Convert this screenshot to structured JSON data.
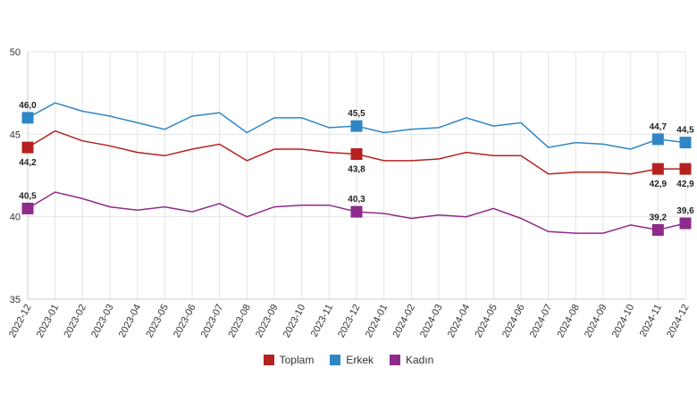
{
  "chart_data": {
    "type": "line",
    "x": [
      "2022-12",
      "2023-01",
      "2023-02",
      "2023-03",
      "2023-04",
      "2023-05",
      "2023-06",
      "2023-07",
      "2023-08",
      "2023-09",
      "2023-10",
      "2023-11",
      "2023-12",
      "2024-01",
      "2024-02",
      "2024-03",
      "2024-04",
      "2024-05",
      "2024-06",
      "2024-07",
      "2024-08",
      "2024-09",
      "2024-10",
      "2024-11",
      "2024-12"
    ],
    "ylim": [
      35,
      50
    ],
    "yticks": [
      "35",
      "40",
      "45",
      "50"
    ],
    "grid": true,
    "legend_position": "bottom",
    "series": [
      {
        "name": "Toplam",
        "color": "#b5211f",
        "values": [
          44.2,
          45.2,
          44.6,
          44.3,
          43.9,
          43.7,
          44.1,
          44.4,
          43.4,
          44.1,
          44.1,
          43.9,
          43.8,
          43.4,
          43.4,
          43.5,
          43.9,
          43.7,
          43.7,
          42.6,
          42.7,
          42.7,
          42.6,
          42.9,
          42.9
        ]
      },
      {
        "name": "Erkek",
        "color": "#2f86c5",
        "values": [
          46.0,
          46.9,
          46.4,
          46.1,
          45.7,
          45.3,
          46.1,
          46.3,
          45.1,
          46.0,
          46.0,
          45.4,
          45.5,
          45.1,
          45.3,
          45.4,
          46.0,
          45.5,
          45.7,
          44.2,
          44.5,
          44.4,
          44.1,
          44.7,
          44.5
        ]
      },
      {
        "name": "Kadın",
        "color": "#8e2a8c",
        "values": [
          40.5,
          41.5,
          41.1,
          40.6,
          40.4,
          40.6,
          40.3,
          40.8,
          40.0,
          40.6,
          40.7,
          40.7,
          40.3,
          40.2,
          39.9,
          40.1,
          40.0,
          40.5,
          39.9,
          39.1,
          39.0,
          39.0,
          39.5,
          39.2,
          39.6
        ]
      }
    ],
    "data_labels": [
      {
        "series": 0,
        "index": 0,
        "text": "44,2",
        "pos": "below"
      },
      {
        "series": 0,
        "index": 12,
        "text": "43,8",
        "pos": "below"
      },
      {
        "series": 0,
        "index": 23,
        "text": "42,9",
        "pos": "below"
      },
      {
        "series": 0,
        "index": 24,
        "text": "42,9",
        "pos": "below"
      },
      {
        "series": 1,
        "index": 0,
        "text": "46,0",
        "pos": "above"
      },
      {
        "series": 1,
        "index": 12,
        "text": "45,5",
        "pos": "above"
      },
      {
        "series": 1,
        "index": 23,
        "text": "44,7",
        "pos": "above"
      },
      {
        "series": 1,
        "index": 24,
        "text": "44,5",
        "pos": "above"
      },
      {
        "series": 2,
        "index": 0,
        "text": "40,5",
        "pos": "above"
      },
      {
        "series": 2,
        "index": 12,
        "text": "40,3",
        "pos": "above"
      },
      {
        "series": 2,
        "index": 23,
        "text": "39,2",
        "pos": "above"
      },
      {
        "series": 2,
        "index": 24,
        "text": "39,6",
        "pos": "above"
      }
    ]
  }
}
